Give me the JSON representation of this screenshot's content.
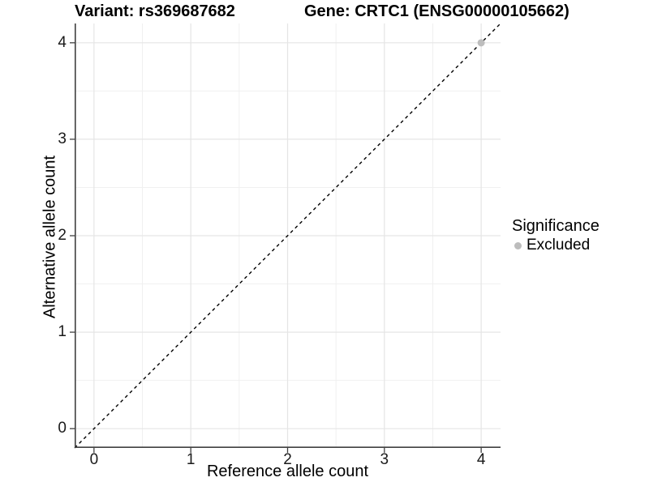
{
  "chart_data": {
    "type": "scatter",
    "titles": {
      "left": "Variant: rs369687682",
      "right": "Gene: CRTC1 (ENSG00000105662)"
    },
    "xlabel": "Reference allele count",
    "ylabel": "Alternative allele count",
    "xlim": [
      -0.2,
      4.2
    ],
    "ylim": [
      -0.2,
      4.2
    ],
    "x_ticks": [
      0,
      1,
      2,
      3,
      4
    ],
    "y_ticks": [
      0,
      1,
      2,
      3,
      4
    ],
    "grid": {
      "major_every": 1,
      "minor_every": 0.5,
      "major_color": "#e5e5e5",
      "minor_color": "#f0f0f0"
    },
    "identity_line": {
      "slope": 1,
      "intercept": 0,
      "style": "dashed",
      "color": "#000000"
    },
    "series": [
      {
        "name": "Excluded",
        "color": "#bdbdbd",
        "points": [
          [
            4,
            4
          ]
        ]
      }
    ],
    "legend": {
      "title": "Significance",
      "position": "right",
      "items": [
        {
          "label": "Excluded",
          "color": "#bdbdbd"
        }
      ]
    },
    "axis_line_color": "#404040"
  }
}
